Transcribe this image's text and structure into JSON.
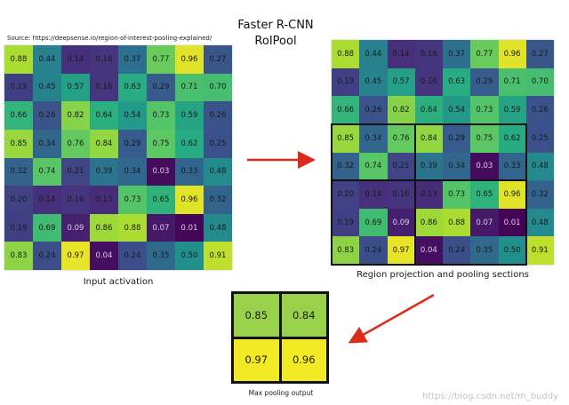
{
  "title": {
    "line1": "Faster R-CNN",
    "line2": "RoIPool"
  },
  "source_note": "Source:  https://deepsense.io/region-of-interest-pooling-explained/",
  "captions": {
    "input": "Input activation",
    "projection": "Region projection and pooling sections",
    "output": "Max pooling output"
  },
  "watermark": "https://blog.csdn.net/m_buddy",
  "colors": {
    "low": "#440154",
    "mid": "#2a8a8d",
    "high": "#fde725",
    "arrow": "#dd2a1b",
    "output_top": "#9ad14a",
    "output_bottom": "#f2ea24"
  },
  "activation_grid": [
    [
      "0.88",
      "0.44",
      "0.14",
      "0.16",
      "0.37",
      "0.77",
      "0.96",
      "0.27"
    ],
    [
      "0.19",
      "0.45",
      "0.57",
      "0.16",
      "0.63",
      "0.29",
      "0.71",
      "0.70"
    ],
    [
      "0.66",
      "0.26",
      "0.82",
      "0.64",
      "0.54",
      "0.73",
      "0.59",
      "0.26"
    ],
    [
      "0.85",
      "0.34",
      "0.76",
      "0.84",
      "0.29",
      "0.75",
      "0.62",
      "0.25"
    ],
    [
      "0.32",
      "0.74",
      "0.21",
      "0.39",
      "0.34",
      "0.03",
      "0.33",
      "0.48"
    ],
    [
      "0.20",
      "0.14",
      "0.16",
      "0.13",
      "0.73",
      "0.65",
      "0.96",
      "0.32"
    ],
    [
      "0.19",
      "0.69",
      "0.09",
      "0.86",
      "0.88",
      "0.07",
      "0.01",
      "0.48"
    ],
    [
      "0.83",
      "0.24",
      "0.97",
      "0.04",
      "0.24",
      "0.35",
      "0.50",
      "0.91"
    ]
  ],
  "pooling_output": [
    [
      "0.85",
      "0.84"
    ],
    [
      "0.97",
      "0.96"
    ]
  ]
}
